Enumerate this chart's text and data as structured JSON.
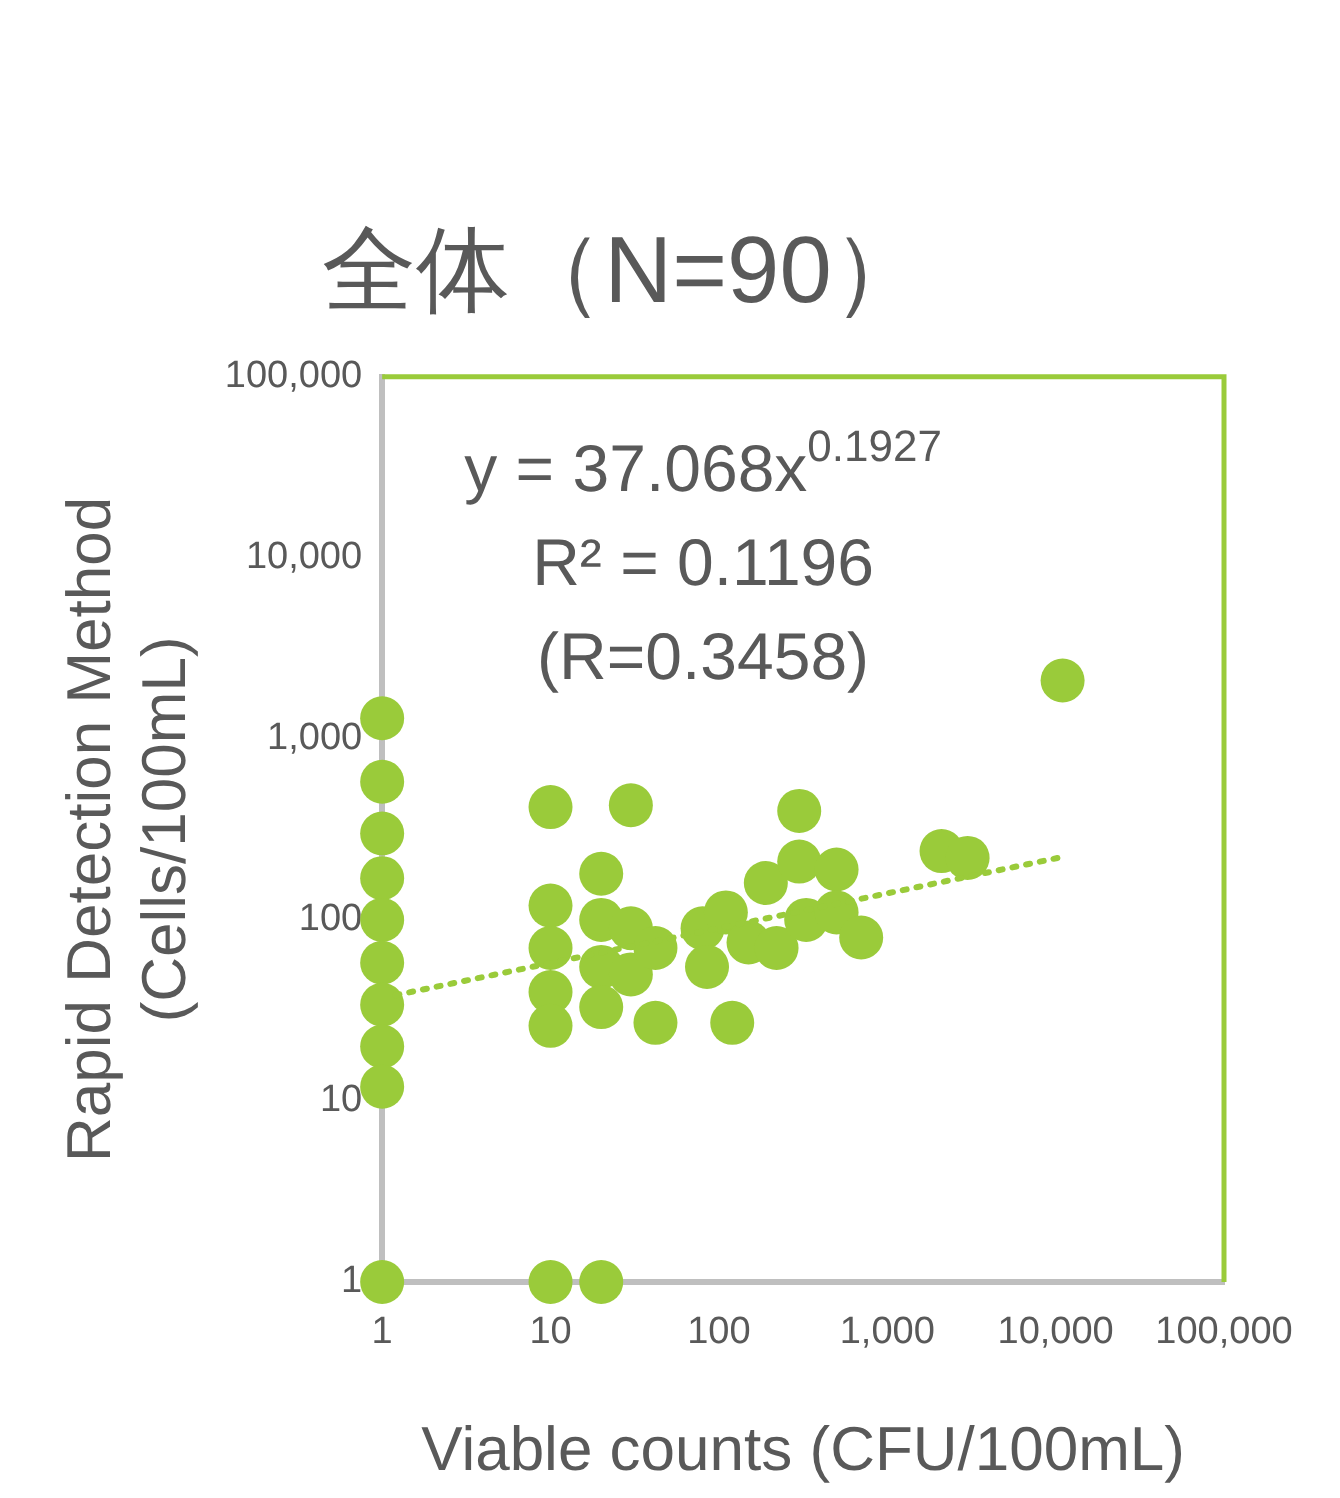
{
  "chart_data": {
    "type": "scatter",
    "title": "全体（N=90）",
    "xlabel": "Viable counts (CFU/100mL)",
    "ylabel": "Rapid Detection Method (Cells/100mL)",
    "log": "xy",
    "grid": false,
    "legend": false,
    "marker": "circle",
    "xlim": [
      1,
      100000
    ],
    "ylim": [
      1,
      100000
    ],
    "xticks": [
      1,
      10,
      100,
      {
        "value": 1000,
        "label": "1,000"
      },
      {
        "value": 10000,
        "label": "10,000"
      },
      {
        "value": 100000,
        "label": "100,000"
      }
    ],
    "yticks": [
      1,
      10,
      100,
      {
        "value": 1000,
        "label": "1,000"
      },
      {
        "value": 10000,
        "label": "10,000"
      },
      {
        "value": 100000,
        "label": "100,000"
      }
    ],
    "annotations": [
      "y = 37.068x$^{0.1927}$",
      "R² = 0.1196",
      "(R=0.3458)"
    ],
    "series": [
      {
        "color": "#9acb3a",
        "x": [
          1,
          1,
          1,
          1,
          1,
          1,
          1,
          1,
          1,
          1,
          10,
          10,
          10,
          10,
          10,
          10,
          20,
          20,
          20,
          20,
          20,
          30,
          30,
          30,
          42,
          42,
          80,
          85,
          110,
          120,
          150,
          220,
          190,
          300,
          300,
          330,
          500,
          500,
          700,
          2100,
          3000,
          11000
        ],
        "values": [
          1300,
          580,
          300,
          170,
          100,
          58,
          34,
          20,
          12,
          1,
          420,
          120,
          70,
          40,
          26,
          1,
          180,
          100,
          55,
          33,
          1,
          430,
          90,
          50,
          70,
          27,
          90,
          55,
          110,
          27,
          75,
          70,
          160,
          400,
          210,
          100,
          190,
          110,
          80,
          240,
          220,
          2100
        ]
      },
      {
        "type": "line",
        "line_style": "dotted",
        "marker": "none",
        "color": "#9acb3a",
        "x": [
          1.2,
          10,
          100,
          1000,
          11000
        ],
        "values": [
          38.39,
          57.76,
          90.0,
          140.2,
          222.8
        ]
      }
    ]
  }
}
